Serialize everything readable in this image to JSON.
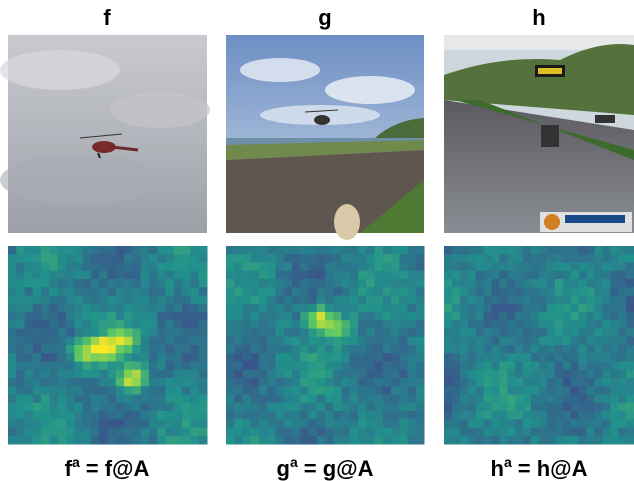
{
  "columns": [
    {
      "header": "f",
      "caption": {
        "base": "f",
        "superscript": "a",
        "rest": "= f@A"
      }
    },
    {
      "header": "g",
      "caption": {
        "base": "g",
        "superscript": "a",
        "rest": "= g@A"
      }
    },
    {
      "header": "h",
      "caption": {
        "base": "h",
        "superscript": "a",
        "rest": "= h@A"
      }
    }
  ]
}
